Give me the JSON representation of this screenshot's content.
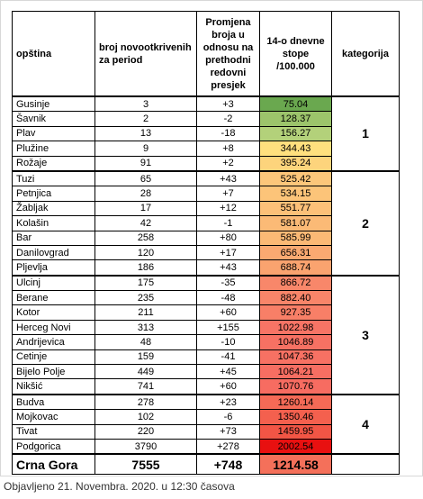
{
  "table": {
    "header": [
      "opština",
      "broj novootkrivenih za period",
      "Promjena broja u odnosu na prethodni redovni presjek",
      "14-o dnevne stope /100.000",
      "kategorija"
    ],
    "groups": [
      {
        "category": "1",
        "rows": [
          {
            "cells": [
              "Gusinje",
              "3",
              "+3",
              "75.04"
            ],
            "color": "#6aa84f"
          },
          {
            "cells": [
              "Šavnik",
              "2",
              "-2",
              "128.37"
            ],
            "color": "#9cc46b"
          },
          {
            "cells": [
              "Plav",
              "13",
              "-18",
              "156.27"
            ],
            "color": "#b3d17a"
          },
          {
            "cells": [
              "Plužine",
              "9",
              "+8",
              "344.43"
            ],
            "color": "#ffe07e"
          },
          {
            "cells": [
              "Rožaje",
              "91",
              "+2",
              "395.24"
            ],
            "color": "#fdd47c"
          }
        ]
      },
      {
        "category": "2",
        "rows": [
          {
            "cells": [
              "Tuzi",
              "65",
              "+43",
              "525.42"
            ],
            "color": "#fcc67a"
          },
          {
            "cells": [
              "Petnjica",
              "28",
              "+7",
              "534.15"
            ],
            "color": "#fcc479"
          },
          {
            "cells": [
              "Žabljak",
              "17",
              "+12",
              "551.77"
            ],
            "color": "#fcc078"
          },
          {
            "cells": [
              "Kolašin",
              "42",
              "-1",
              "581.07"
            ],
            "color": "#fbba76"
          },
          {
            "cells": [
              "Bar",
              "258",
              "+80",
              "585.99"
            ],
            "color": "#fbb975"
          },
          {
            "cells": [
              "Danilovgrad",
              "120",
              "+17",
              "656.31"
            ],
            "color": "#faa971"
          },
          {
            "cells": [
              "Pljevlja",
              "186",
              "+43",
              "688.74"
            ],
            "color": "#faa36f"
          }
        ]
      },
      {
        "category": "3",
        "rows": [
          {
            "cells": [
              "Ulcinj",
              "175",
              "-35",
              "866.72"
            ],
            "color": "#f8876a"
          },
          {
            "cells": [
              "Berane",
              "235",
              "-48",
              "882.40"
            ],
            "color": "#f88569"
          },
          {
            "cells": [
              "Kotor",
              "211",
              "+60",
              "927.35"
            ],
            "color": "#f87f67"
          },
          {
            "cells": [
              "Herceg Novi",
              "313",
              "+155",
              "1022.98"
            ],
            "color": "#f77465"
          },
          {
            "cells": [
              "Andrijevica",
              "48",
              "-10",
              "1046.89"
            ],
            "color": "#f77163"
          },
          {
            "cells": [
              "Cetinje",
              "159",
              "-41",
              "1047.36"
            ],
            "color": "#f77163"
          },
          {
            "cells": [
              "Bijelo Polje",
              "449",
              "+45",
              "1064.21"
            ],
            "color": "#f76e62"
          },
          {
            "cells": [
              "Nikšić",
              "741",
              "+60",
              "1070.76"
            ],
            "color": "#f76c61"
          }
        ]
      },
      {
        "category": "4",
        "rows": [
          {
            "cells": [
              "Budva",
              "278",
              "+23",
              "1260.14"
            ],
            "color": "#f56a56"
          },
          {
            "cells": [
              "Mojkovac",
              "102",
              "-6",
              "1350.46"
            ],
            "color": "#f4604e"
          },
          {
            "cells": [
              "Tivat",
              "220",
              "+73",
              "1459.95"
            ],
            "color": "#f25545"
          },
          {
            "cells": [
              "Podgorica",
              "3790",
              "+278",
              "2002.54"
            ],
            "color": "#e81010"
          }
        ]
      }
    ],
    "total": {
      "cells": [
        "Crna Gora",
        "7555",
        "+748",
        "1214.58"
      ],
      "color": "#f4705a"
    }
  },
  "footer": "Objavljeno 21. Novembra. 2020. u 12:30 časova"
}
